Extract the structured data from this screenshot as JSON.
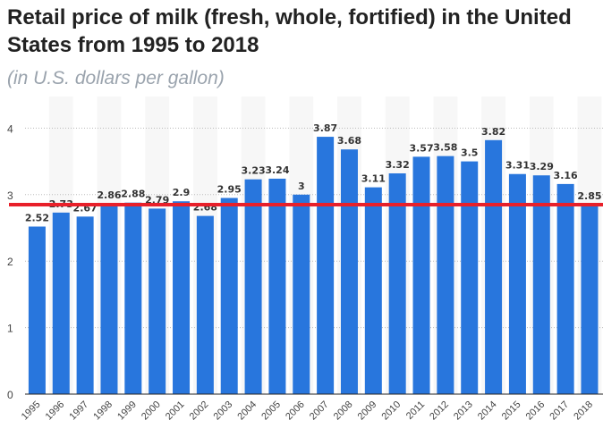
{
  "chart_data": {
    "type": "bar",
    "title": "Retail price of milk (fresh, whole, fortified) in the United States from 1995 to 2018",
    "subtitle": "(in U.S. dollars per gallon)",
    "xlabel": "",
    "ylabel": "",
    "ylim": [
      0,
      4.4
    ],
    "yticks": [
      0,
      1,
      2,
      3,
      4
    ],
    "grid": true,
    "categories": [
      "1995",
      "1996",
      "1997",
      "1998",
      "1999",
      "2000",
      "2001",
      "2002",
      "2003",
      "2004",
      "2005",
      "2006",
      "2007",
      "2008",
      "2009",
      "2010",
      "2011",
      "2012",
      "2013",
      "2014",
      "2015",
      "2016",
      "2017",
      "2018"
    ],
    "values": [
      2.52,
      2.73,
      2.67,
      2.86,
      2.88,
      2.79,
      2.9,
      2.68,
      2.95,
      3.23,
      3.24,
      3,
      3.87,
      3.68,
      3.11,
      3.32,
      3.57,
      3.58,
      3.5,
      3.82,
      3.31,
      3.29,
      3.16,
      2.85
    ],
    "reference_line": 2.85,
    "colors": {
      "bar": "#2876dd",
      "reference_line": "#e8202a",
      "band": "#f7f7f7"
    }
  }
}
